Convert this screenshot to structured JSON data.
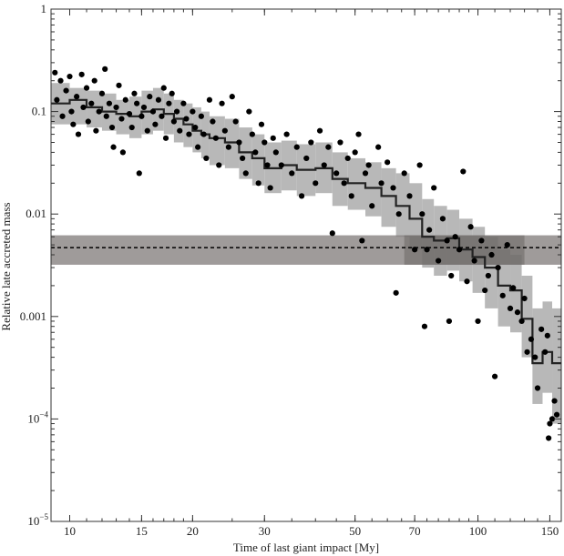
{
  "chart_data": {
    "type": "scatter",
    "title": "",
    "xlabel": "Time of last giant impact [My]",
    "ylabel": "Relative late accreted mass",
    "xscale": "log",
    "yscale": "log",
    "xlim": [
      9,
      160
    ],
    "ylim": [
      1e-05,
      1
    ],
    "grid": false,
    "x_ticks": [
      {
        "value": 10,
        "label": "10"
      },
      {
        "value": 15,
        "label": "15"
      },
      {
        "value": 20,
        "label": "20"
      },
      {
        "value": 30,
        "label": "30"
      },
      {
        "value": 50,
        "label": "50"
      },
      {
        "value": 70,
        "label": "70"
      },
      {
        "value": 100,
        "label": "100"
      },
      {
        "value": 150,
        "label": "150"
      }
    ],
    "y_ticks": [
      {
        "value": 1,
        "base": "1",
        "exp": ""
      },
      {
        "value": 0.1,
        "base": "0.1",
        "exp": ""
      },
      {
        "value": 0.01,
        "base": "0.01",
        "exp": ""
      },
      {
        "value": 0.001,
        "base": "0.001",
        "exp": ""
      },
      {
        "value": 0.0001,
        "base": "10",
        "exp": "−4"
      },
      {
        "value": 1e-05,
        "base": "10",
        "exp": "−5"
      }
    ],
    "horizontal_band": {
      "y": 0.0047,
      "ymin": 0.0032,
      "ymax": 0.0062,
      "color": "#7f7a78",
      "line_style": "dashed"
    },
    "estimate_box": {
      "xmin": 66,
      "xmax": 130,
      "ymin": 0.0032,
      "ymax": 0.0062,
      "color": "#6a6664"
    },
    "colors": {
      "points": "#000000",
      "band": "#b8b8b8",
      "median": "#222222"
    },
    "median_step": [
      {
        "x0": 9,
        "x1": 10,
        "y": 0.12,
        "lo": 0.075,
        "hi": 0.19
      },
      {
        "x0": 10,
        "x1": 11,
        "y": 0.13,
        "lo": 0.075,
        "hi": 0.17
      },
      {
        "x0": 11,
        "x1": 12,
        "y": 0.11,
        "lo": 0.07,
        "hi": 0.16
      },
      {
        "x0": 12,
        "x1": 13,
        "y": 0.1,
        "lo": 0.065,
        "hi": 0.15
      },
      {
        "x0": 13,
        "x1": 14,
        "y": 0.095,
        "lo": 0.06,
        "hi": 0.13
      },
      {
        "x0": 14,
        "x1": 15,
        "y": 0.09,
        "lo": 0.055,
        "hi": 0.14
      },
      {
        "x0": 15,
        "x1": 16,
        "y": 0.1,
        "lo": 0.06,
        "hi": 0.16
      },
      {
        "x0": 16,
        "x1": 17,
        "y": 0.105,
        "lo": 0.065,
        "hi": 0.17
      },
      {
        "x0": 17,
        "x1": 18,
        "y": 0.095,
        "lo": 0.06,
        "hi": 0.15
      },
      {
        "x0": 18,
        "x1": 19,
        "y": 0.085,
        "lo": 0.05,
        "hi": 0.13
      },
      {
        "x0": 19,
        "x1": 20,
        "y": 0.075,
        "lo": 0.045,
        "hi": 0.12
      },
      {
        "x0": 20,
        "x1": 21,
        "y": 0.065,
        "lo": 0.04,
        "hi": 0.11
      },
      {
        "x0": 21,
        "x1": 22,
        "y": 0.06,
        "lo": 0.035,
        "hi": 0.1
      },
      {
        "x0": 22,
        "x1": 24,
        "y": 0.055,
        "lo": 0.03,
        "hi": 0.09
      },
      {
        "x0": 24,
        "x1": 26,
        "y": 0.05,
        "lo": 0.028,
        "hi": 0.085
      },
      {
        "x0": 26,
        "x1": 28,
        "y": 0.04,
        "lo": 0.022,
        "hi": 0.07
      },
      {
        "x0": 28,
        "x1": 30,
        "y": 0.035,
        "lo": 0.019,
        "hi": 0.06
      },
      {
        "x0": 30,
        "x1": 33,
        "y": 0.028,
        "lo": 0.016,
        "hi": 0.05
      },
      {
        "x0": 33,
        "x1": 36,
        "y": 0.03,
        "lo": 0.017,
        "hi": 0.052
      },
      {
        "x0": 36,
        "x1": 40,
        "y": 0.027,
        "lo": 0.015,
        "hi": 0.048
      },
      {
        "x0": 40,
        "x1": 44,
        "y": 0.028,
        "lo": 0.016,
        "hi": 0.05
      },
      {
        "x0": 44,
        "x1": 48,
        "y": 0.022,
        "lo": 0.012,
        "hi": 0.04
      },
      {
        "x0": 48,
        "x1": 53,
        "y": 0.02,
        "lo": 0.011,
        "hi": 0.035
      },
      {
        "x0": 53,
        "x1": 58,
        "y": 0.018,
        "lo": 0.0095,
        "hi": 0.032
      },
      {
        "x0": 58,
        "x1": 63,
        "y": 0.015,
        "lo": 0.0075,
        "hi": 0.028
      },
      {
        "x0": 63,
        "x1": 68,
        "y": 0.012,
        "lo": 0.006,
        "hi": 0.025
      },
      {
        "x0": 68,
        "x1": 73,
        "y": 0.009,
        "lo": 0.0045,
        "hi": 0.02
      },
      {
        "x0": 73,
        "x1": 78,
        "y": 0.006,
        "lo": 0.003,
        "hi": 0.014
      },
      {
        "x0": 78,
        "x1": 84,
        "y": 0.0055,
        "lo": 0.0025,
        "hi": 0.012
      },
      {
        "x0": 84,
        "x1": 90,
        "y": 0.0058,
        "lo": 0.0028,
        "hi": 0.011
      },
      {
        "x0": 90,
        "x1": 97,
        "y": 0.0045,
        "lo": 0.0022,
        "hi": 0.009
      },
      {
        "x0": 97,
        "x1": 104,
        "y": 0.0038,
        "lo": 0.0017,
        "hi": 0.0075
      },
      {
        "x0": 104,
        "x1": 112,
        "y": 0.003,
        "lo": 0.0012,
        "hi": 0.006
      },
      {
        "x0": 112,
        "x1": 120,
        "y": 0.002,
        "lo": 0.0008,
        "hi": 0.0045
      },
      {
        "x0": 120,
        "x1": 128,
        "y": 0.0018,
        "lo": 0.0007,
        "hi": 0.004
      },
      {
        "x0": 128,
        "x1": 136,
        "y": 0.00095,
        "lo": 0.0004,
        "hi": 0.0025
      },
      {
        "x0": 136,
        "x1": 144,
        "y": 0.00035,
        "lo": 0.00014,
        "hi": 0.0012
      },
      {
        "x0": 144,
        "x1": 152,
        "y": 0.00045,
        "lo": 0.00018,
        "hi": 0.0014
      },
      {
        "x0": 152,
        "x1": 160,
        "y": 0.00035,
        "lo": 9e-05,
        "hi": 0.0012
      }
    ],
    "points": [
      [
        9.2,
        0.24
      ],
      [
        9.3,
        0.13
      ],
      [
        9.5,
        0.2
      ],
      [
        9.6,
        0.09
      ],
      [
        9.8,
        0.16
      ],
      [
        10.0,
        0.22
      ],
      [
        10.1,
        0.1
      ],
      [
        10.2,
        0.075
      ],
      [
        10.4,
        0.14
      ],
      [
        10.5,
        0.06
      ],
      [
        10.7,
        0.23
      ],
      [
        10.8,
        0.11
      ],
      [
        11.0,
        0.17
      ],
      [
        11.1,
        0.08
      ],
      [
        11.3,
        0.12
      ],
      [
        11.5,
        0.2
      ],
      [
        11.6,
        0.065
      ],
      [
        11.8,
        0.1
      ],
      [
        12.0,
        0.15
      ],
      [
        12.2,
        0.26
      ],
      [
        12.3,
        0.09
      ],
      [
        12.5,
        0.12
      ],
      [
        12.7,
        0.07
      ],
      [
        12.8,
        0.045
      ],
      [
        13.0,
        0.11
      ],
      [
        13.2,
        0.18
      ],
      [
        13.4,
        0.085
      ],
      [
        13.5,
        0.04
      ],
      [
        13.7,
        0.13
      ],
      [
        14.0,
        0.095
      ],
      [
        14.2,
        0.07
      ],
      [
        14.4,
        0.15
      ],
      [
        14.6,
        0.12
      ],
      [
        14.8,
        0.025
      ],
      [
        15.0,
        0.09
      ],
      [
        15.2,
        0.11
      ],
      [
        15.5,
        0.065
      ],
      [
        15.7,
        0.14
      ],
      [
        16.0,
        0.1
      ],
      [
        16.2,
        0.075
      ],
      [
        16.5,
        0.13
      ],
      [
        16.8,
        0.09
      ],
      [
        17.0,
        0.17
      ],
      [
        17.2,
        0.055
      ],
      [
        17.5,
        0.12
      ],
      [
        17.8,
        0.15
      ],
      [
        18.0,
        0.08
      ],
      [
        18.3,
        0.1
      ],
      [
        18.6,
        0.065
      ],
      [
        19.0,
        0.12
      ],
      [
        19.3,
        0.085
      ],
      [
        19.6,
        0.06
      ],
      [
        20.0,
        0.1
      ],
      [
        20.3,
        0.07
      ],
      [
        20.6,
        0.045
      ],
      [
        21.0,
        0.09
      ],
      [
        21.3,
        0.06
      ],
      [
        21.6,
        0.035
      ],
      [
        22.0,
        0.13
      ],
      [
        22.4,
        0.08
      ],
      [
        22.8,
        0.055
      ],
      [
        23.2,
        0.03
      ],
      [
        23.6,
        0.12
      ],
      [
        24.0,
        0.065
      ],
      [
        24.5,
        0.045
      ],
      [
        25.0,
        0.14
      ],
      [
        25.5,
        0.08
      ],
      [
        26.0,
        0.05
      ],
      [
        26.5,
        0.035
      ],
      [
        27.0,
        0.025
      ],
      [
        27.5,
        0.1
      ],
      [
        28.0,
        0.06
      ],
      [
        28.5,
        0.04
      ],
      [
        29.0,
        0.02
      ],
      [
        29.5,
        0.075
      ],
      [
        30.0,
        0.05
      ],
      [
        30.5,
        0.03
      ],
      [
        31.0,
        0.018
      ],
      [
        31.5,
        0.055
      ],
      [
        32.0,
        0.04
      ],
      [
        33.0,
        0.03
      ],
      [
        34.0,
        0.06
      ],
      [
        35.0,
        0.025
      ],
      [
        36.0,
        0.045
      ],
      [
        37.0,
        0.015
      ],
      [
        38.0,
        0.035
      ],
      [
        39.0,
        0.05
      ],
      [
        40.0,
        0.02
      ],
      [
        41.0,
        0.065
      ],
      [
        42.0,
        0.03
      ],
      [
        43.0,
        0.045
      ],
      [
        44.0,
        0.0065
      ],
      [
        45.0,
        0.025
      ],
      [
        46.0,
        0.05
      ],
      [
        47.0,
        0.02
      ],
      [
        48.0,
        0.035
      ],
      [
        49.0,
        0.015
      ],
      [
        50.0,
        0.04
      ],
      [
        51.0,
        0.06
      ],
      [
        52.0,
        0.0055
      ],
      [
        53.0,
        0.025
      ],
      [
        54.0,
        0.03
      ],
      [
        55.0,
        0.012
      ],
      [
        57.0,
        0.045
      ],
      [
        58.0,
        0.02
      ],
      [
        60.0,
        0.032
      ],
      [
        62.0,
        0.018
      ],
      [
        63.0,
        0.0017
      ],
      [
        64.0,
        0.01
      ],
      [
        66.0,
        0.025
      ],
      [
        68.0,
        0.015
      ],
      [
        70.0,
        0.0045
      ],
      [
        72.0,
        0.03
      ],
      [
        73.0,
        0.01
      ],
      [
        74.0,
        0.0008
      ],
      [
        75.0,
        0.0045
      ],
      [
        76.0,
        0.007
      ],
      [
        78.0,
        0.018
      ],
      [
        80.0,
        0.0035
      ],
      [
        82.0,
        0.009
      ],
      [
        84.0,
        0.0055
      ],
      [
        85.0,
        0.0009
      ],
      [
        86.0,
        0.0025
      ],
      [
        88.0,
        0.006
      ],
      [
        90.0,
        0.0045
      ],
      [
        92.0,
        0.026
      ],
      [
        94.0,
        0.0022
      ],
      [
        96.0,
        0.0075
      ],
      [
        98.0,
        0.0035
      ],
      [
        100.0,
        0.0009
      ],
      [
        102.0,
        0.0055
      ],
      [
        104.0,
        0.0018
      ],
      [
        106.0,
        0.0025
      ],
      [
        108.0,
        0.004
      ],
      [
        110.0,
        0.00026
      ],
      [
        112.0,
        0.003
      ],
      [
        115.0,
        0.0016
      ],
      [
        118.0,
        0.005
      ],
      [
        120.0,
        0.0012
      ],
      [
        122.0,
        0.0019
      ],
      [
        125.0,
        0.0011
      ],
      [
        128.0,
        0.0009
      ],
      [
        130.0,
        0.0015
      ],
      [
        132.0,
        0.00045
      ],
      [
        135.0,
        0.0006
      ],
      [
        138.0,
        0.0004
      ],
      [
        140.0,
        0.0002
      ],
      [
        143.0,
        0.00075
      ],
      [
        146.0,
        0.00045
      ],
      [
        148.0,
        0.00065
      ],
      [
        150.0,
        9e-05
      ],
      [
        152.0,
        0.0001
      ],
      [
        154.0,
        0.00015
      ],
      [
        156.0,
        0.00011
      ],
      [
        149.0,
        6.5e-05
      ]
    ]
  }
}
